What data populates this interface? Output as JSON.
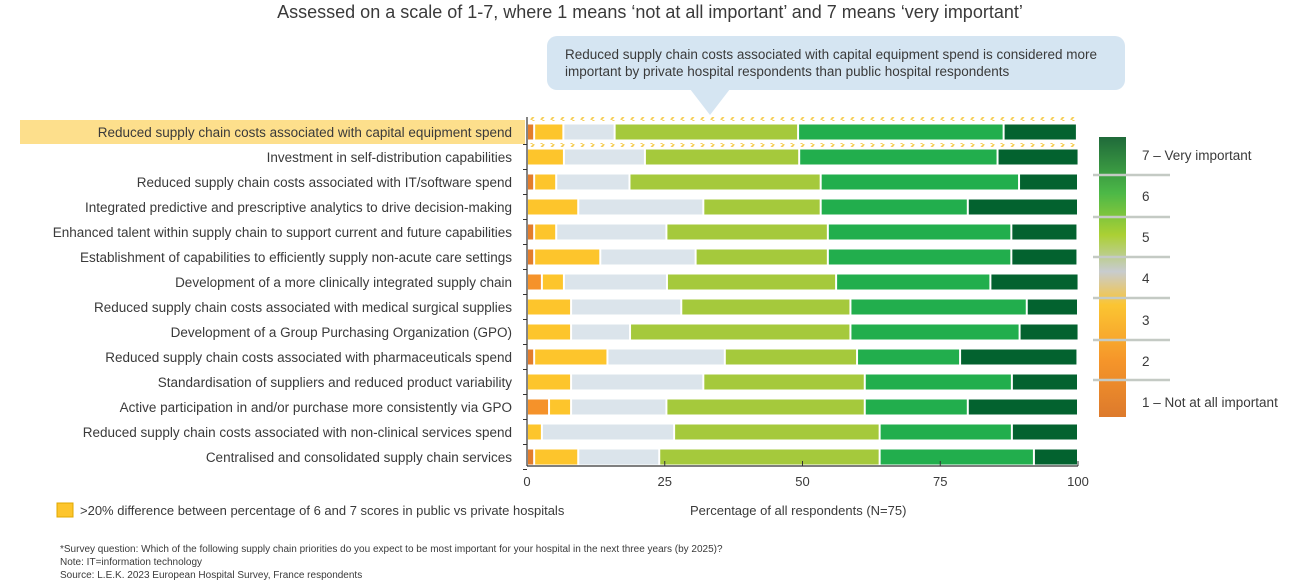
{
  "chart_data": {
    "type": "bar",
    "orientation": "horizontal",
    "stacked": true,
    "title": "Assessed on a scale of 1-7, where 1 means ‘not at all important’ and 7 means ‘very important’",
    "xlabel": "Percentage of all respondents (N=75)",
    "xlim": [
      0,
      100
    ],
    "xticks": [
      "0",
      "25",
      "50",
      "75",
      "100"
    ],
    "grid": false,
    "legend_position": "right",
    "categories": [
      "Reduced supply chain costs associated with capital equipment spend",
      "Investment in self-distribution capabilities",
      "Reduced supply chain costs associated with IT/software spend",
      "Integrated predictive and prescriptive analytics to drive decision-making",
      "Enhanced talent within supply chain to support current and future capabilities",
      "Establishment of capabilities to efficiently supply non-acute care settings",
      "Development of a more clinically integrated supply chain",
      "Reduced supply chain costs associated with medical surgical supplies",
      "Development of a Group Purchasing Organization (GPO)",
      "Reduced supply chain costs associated with pharmaceuticals spend",
      "Standardisation of suppliers and reduced product variability",
      "Active participation in and/or purchase more consistently via GPO",
      "Reduced supply chain costs associated with non-clinical services spend",
      "Centralised and consolidated supply chain services"
    ],
    "highlighted_categories": [
      "Reduced supply chain costs associated with capital equipment spend"
    ],
    "series": [
      {
        "name": "1 – Not at all important",
        "color": "#e27d2c",
        "values": [
          1.3,
          0,
          1.3,
          0,
          1.3,
          1.3,
          0,
          0,
          0,
          1.3,
          0,
          0,
          0,
          1.3
        ]
      },
      {
        "name": "2",
        "color": "#f5922a",
        "values": [
          0,
          0,
          0,
          0,
          0,
          0,
          2.7,
          0,
          0,
          0,
          0,
          4,
          0,
          0
        ]
      },
      {
        "name": "3",
        "color": "#fdc52c",
        "values": [
          5.3,
          6.7,
          4,
          9.3,
          4,
          12,
          4,
          8,
          8,
          13.3,
          8,
          4,
          2.7,
          8
        ]
      },
      {
        "name": "4",
        "color": "#dbe4eb",
        "values": [
          9.3,
          14.7,
          13.3,
          22.7,
          20,
          17.3,
          18.7,
          20,
          10.7,
          21.3,
          24,
          17.3,
          24,
          14.7
        ]
      },
      {
        "name": "5",
        "color": "#a5c93c",
        "values": [
          33.3,
          28,
          34.7,
          21.3,
          29.3,
          24,
          30.7,
          30.7,
          40,
          24,
          29.3,
          36,
          37.3,
          40
        ]
      },
      {
        "name": "6",
        "color": "#22ae4d",
        "values": [
          37.3,
          36,
          36,
          26.7,
          33.3,
          33.3,
          28,
          32,
          30.7,
          18.7,
          26.7,
          18.7,
          24,
          28
        ]
      },
      {
        "name": "7 – Very important",
        "color": "#03622f",
        "values": [
          13.3,
          14.7,
          10.7,
          20,
          12,
          12,
          16,
          9.3,
          10.7,
          21.3,
          12,
          20,
          12,
          8
        ]
      }
    ],
    "legend_labels": [
      "7 – Very important",
      "6",
      "5",
      "4",
      "3",
      "2",
      "1 – Not at all important"
    ],
    "highlight_legend": ">20% difference between percentage of 6 and 7 scores in public vs private hospitals",
    "highlight_color": "#fdc52c",
    "callout": "Reduced supply chain costs associated with capital equipment spend is considered more important by private hospital respondents than public hospital respondents"
  },
  "footnotes": [
    "*Survey question: Which of the following supply chain priorities do you expect to be most important for your hospital in the next three years (by 2025)?",
    "Note: IT=information technology",
    "Source: L.E.K. 2023 European Hospital Survey, France respondents"
  ]
}
